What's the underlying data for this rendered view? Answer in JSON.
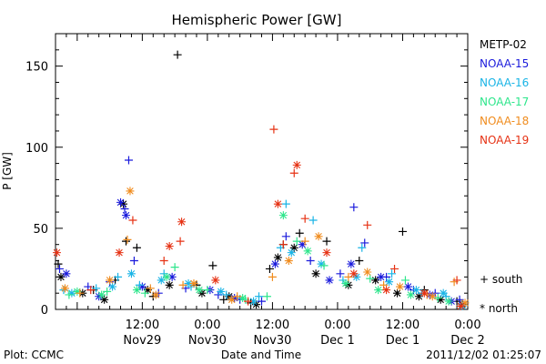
{
  "chart_data": {
    "type": "scatter",
    "title": "Hemispheric Power [GW]",
    "ylabel": "P [GW]",
    "xlabel": "Date and Time",
    "ylim": [
      0,
      170
    ],
    "yticks": [
      0,
      50,
      100,
      150
    ],
    "xlim": [
      "2011-11-28T20:00",
      "2011-12-02T00:00"
    ],
    "xticks": [
      {
        "time": "2011-11-29T12:00",
        "top": "12:00",
        "bottom": "Nov29"
      },
      {
        "time": "2011-11-30T00:00",
        "top": "0:00",
        "bottom": "Nov30"
      },
      {
        "time": "2011-11-30T12:00",
        "top": "12:00",
        "bottom": "Nov30"
      },
      {
        "time": "2011-12-01T00:00",
        "top": "0:00",
        "bottom": "Dec 1"
      },
      {
        "time": "2011-12-01T12:00",
        "top": "12:00",
        "bottom": "Dec 1"
      },
      {
        "time": "2011-12-02T00:00",
        "top": "0:00",
        "bottom": "Dec 2"
      }
    ],
    "legend_placement": "right",
    "series": [
      {
        "name": "METP-02",
        "color": "#000000",
        "south": [
          [
            "2011-11-28T20:30",
            28
          ],
          [
            "2011-11-29T03:00",
            12
          ],
          [
            "2011-11-29T07:00",
            18
          ],
          [
            "2011-11-29T09:00",
            42
          ],
          [
            "2011-11-29T11:00",
            38
          ],
          [
            "2011-11-29T14:00",
            8
          ],
          [
            "2011-11-29T18:30",
            157
          ],
          [
            "2011-11-29T22:00",
            15
          ],
          [
            "2011-11-30T01:00",
            27
          ],
          [
            "2011-11-30T03:00",
            6
          ],
          [
            "2011-11-30T08:00",
            4
          ],
          [
            "2011-11-30T11:30",
            25
          ],
          [
            "2011-11-30T14:00",
            40
          ],
          [
            "2011-11-30T17:00",
            47
          ],
          [
            "2011-11-30T22:00",
            42
          ],
          [
            "2011-12-01T04:00",
            30
          ],
          [
            "2011-12-01T12:00",
            48
          ],
          [
            "2011-12-01T16:00",
            12
          ],
          [
            "2011-12-01T22:00",
            5
          ]
        ],
        "north": [
          [
            "2011-11-28T21:00",
            20
          ],
          [
            "2011-11-29T01:00",
            10
          ],
          [
            "2011-11-29T05:00",
            6
          ],
          [
            "2011-11-29T08:30",
            65
          ],
          [
            "2011-11-29T13:00",
            12
          ],
          [
            "2011-11-29T17:00",
            15
          ],
          [
            "2011-11-29T23:00",
            10
          ],
          [
            "2011-11-30T04:00",
            8
          ],
          [
            "2011-11-30T09:00",
            3
          ],
          [
            "2011-11-30T13:00",
            32
          ],
          [
            "2011-11-30T16:00",
            38
          ],
          [
            "2011-11-30T20:00",
            22
          ],
          [
            "2011-12-01T02:00",
            15
          ],
          [
            "2011-12-01T07:00",
            18
          ],
          [
            "2011-12-01T11:00",
            10
          ],
          [
            "2011-12-01T15:00",
            8
          ],
          [
            "2011-12-01T19:00",
            6
          ],
          [
            "2011-12-01T23:00",
            3
          ]
        ]
      },
      {
        "name": "NOAA-15",
        "color": "#1a1adc",
        "south": [
          [
            "2011-11-28T20:45",
            25
          ],
          [
            "2011-11-29T02:00",
            14
          ],
          [
            "2011-11-29T06:00",
            17
          ],
          [
            "2011-11-29T08:45",
            62
          ],
          [
            "2011-11-29T09:30",
            92
          ],
          [
            "2011-11-29T10:30",
            30
          ],
          [
            "2011-11-29T15:00",
            10
          ],
          [
            "2011-11-29T20:00",
            13
          ],
          [
            "2011-11-30T02:00",
            9
          ],
          [
            "2011-11-30T06:00",
            6
          ],
          [
            "2011-11-30T10:00",
            5
          ],
          [
            "2011-11-30T14:30",
            45
          ],
          [
            "2011-11-30T19:00",
            30
          ],
          [
            "2011-12-01T00:30",
            22
          ],
          [
            "2011-12-01T03:00",
            63
          ],
          [
            "2011-12-01T05:00",
            41
          ],
          [
            "2011-12-01T09:00",
            20
          ],
          [
            "2011-12-01T14:00",
            12
          ],
          [
            "2011-12-01T18:00",
            10
          ],
          [
            "2011-12-01T22:30",
            6
          ]
        ],
        "north": [
          [
            "2011-11-28T22:00",
            22
          ],
          [
            "2011-11-29T04:00",
            8
          ],
          [
            "2011-11-29T08:00",
            66
          ],
          [
            "2011-11-29T09:00",
            58
          ],
          [
            "2011-11-29T12:00",
            14
          ],
          [
            "2011-11-29T17:30",
            20
          ],
          [
            "2011-11-30T00:30",
            12
          ],
          [
            "2011-11-30T05:00",
            7
          ],
          [
            "2011-11-30T12:30",
            28
          ],
          [
            "2011-11-30T17:30",
            40
          ],
          [
            "2011-11-30T22:30",
            18
          ],
          [
            "2011-12-01T02:30",
            28
          ],
          [
            "2011-12-01T08:00",
            20
          ],
          [
            "2011-12-01T13:00",
            14
          ],
          [
            "2011-12-01T17:00",
            9
          ],
          [
            "2011-12-01T21:00",
            5
          ]
        ]
      },
      {
        "name": "NOAA-16",
        "color": "#19b4e6",
        "south": [
          [
            "2011-11-28T21:30",
            12
          ],
          [
            "2011-11-29T03:30",
            13
          ],
          [
            "2011-11-29T07:30",
            20
          ],
          [
            "2011-11-29T11:30",
            15
          ],
          [
            "2011-11-29T16:00",
            22
          ],
          [
            "2011-11-29T21:00",
            14
          ],
          [
            "2011-11-30T03:30",
            9
          ],
          [
            "2011-11-30T09:30",
            8
          ],
          [
            "2011-11-30T13:30",
            38
          ],
          [
            "2011-11-30T14:30",
            65
          ],
          [
            "2011-11-30T19:30",
            55
          ],
          [
            "2011-12-01T01:00",
            18
          ],
          [
            "2011-12-01T04:30",
            38
          ],
          [
            "2011-12-01T10:00",
            22
          ],
          [
            "2011-12-01T15:30",
            10
          ],
          [
            "2011-12-01T20:00",
            8
          ]
        ],
        "north": [
          [
            "2011-11-28T23:00",
            10
          ],
          [
            "2011-11-29T06:30",
            14
          ],
          [
            "2011-11-29T10:00",
            22
          ],
          [
            "2011-11-29T15:30",
            18
          ],
          [
            "2011-11-29T20:30",
            16
          ],
          [
            "2011-11-30T02:30",
            11
          ],
          [
            "2011-11-30T08:30",
            5
          ],
          [
            "2011-11-30T15:30",
            35
          ],
          [
            "2011-11-30T21:00",
            28
          ],
          [
            "2011-12-01T03:30",
            20
          ],
          [
            "2011-12-01T09:30",
            17
          ],
          [
            "2011-12-01T14:30",
            12
          ],
          [
            "2011-12-01T19:30",
            10
          ],
          [
            "2011-12-01T23:00",
            2
          ]
        ]
      },
      {
        "name": "NOAA-17",
        "color": "#2ee68c",
        "south": [
          [
            "2011-11-28T22:30",
            9
          ],
          [
            "2011-11-29T05:30",
            11
          ],
          [
            "2011-11-29T12:30",
            10
          ],
          [
            "2011-11-29T18:00",
            26
          ],
          [
            "2011-11-30T00:00",
            12
          ],
          [
            "2011-11-30T07:00",
            6
          ],
          [
            "2011-11-30T11:00",
            8
          ],
          [
            "2011-11-30T16:30",
            42
          ],
          [
            "2011-11-30T21:30",
            27
          ],
          [
            "2011-12-01T06:00",
            19
          ],
          [
            "2011-12-01T12:30",
            18
          ],
          [
            "2011-12-01T18:30",
            7
          ]
        ],
        "north": [
          [
            "2011-11-29T00:00",
            11
          ],
          [
            "2011-11-29T04:30",
            9
          ],
          [
            "2011-11-29T11:00",
            12
          ],
          [
            "2011-11-29T16:30",
            20
          ],
          [
            "2011-11-29T22:30",
            12
          ],
          [
            "2011-11-30T06:30",
            7
          ],
          [
            "2011-11-30T14:00",
            58
          ],
          [
            "2011-11-30T18:30",
            36
          ],
          [
            "2011-12-01T01:30",
            16
          ],
          [
            "2011-12-01T07:30",
            12
          ],
          [
            "2011-12-01T13:30",
            9
          ],
          [
            "2011-12-01T20:30",
            5
          ]
        ]
      },
      {
        "name": "NOAA-18",
        "color": "#f08c1e",
        "south": [
          [
            "2011-11-29T00:30",
            10
          ],
          [
            "2011-11-29T09:15",
            43
          ],
          [
            "2011-11-29T13:30",
            13
          ],
          [
            "2011-11-29T19:30",
            15
          ],
          [
            "2011-11-30T05:30",
            8
          ],
          [
            "2011-11-30T12:00",
            20
          ],
          [
            "2011-11-30T18:00",
            42
          ],
          [
            "2011-12-01T02:00",
            20
          ],
          [
            "2011-12-01T08:30",
            15
          ],
          [
            "2011-12-01T16:30",
            9
          ],
          [
            "2011-12-01T21:30",
            17
          ]
        ],
        "north": [
          [
            "2011-11-28T21:45",
            13
          ],
          [
            "2011-11-29T06:00",
            18
          ],
          [
            "2011-11-29T09:45",
            73
          ],
          [
            "2011-11-29T14:30",
            9
          ],
          [
            "2011-11-29T21:30",
            16
          ],
          [
            "2011-11-30T04:30",
            6
          ],
          [
            "2011-11-30T15:00",
            30
          ],
          [
            "2011-11-30T20:30",
            45
          ],
          [
            "2011-12-01T05:30",
            23
          ],
          [
            "2011-12-01T11:30",
            14
          ],
          [
            "2011-12-01T17:30",
            8
          ],
          [
            "2011-12-01T23:30",
            4
          ]
        ]
      },
      {
        "name": "NOAA-19",
        "color": "#e63214",
        "south": [
          [
            "2011-11-29T02:30",
            12
          ],
          [
            "2011-11-29T10:15",
            55
          ],
          [
            "2011-11-29T16:00",
            30
          ],
          [
            "2011-11-29T19:00",
            42
          ],
          [
            "2011-11-30T07:30",
            5
          ],
          [
            "2011-11-30T12:15",
            111
          ],
          [
            "2011-11-30T14:00",
            40
          ],
          [
            "2011-11-30T16:00",
            84
          ],
          [
            "2011-11-30T18:00",
            56
          ],
          [
            "2011-12-01T05:30",
            52
          ],
          [
            "2011-12-01T10:30",
            25
          ],
          [
            "2011-12-01T22:00",
            18
          ]
        ],
        "north": [
          [
            "2011-11-28T20:15",
            35
          ],
          [
            "2011-11-29T07:45",
            35
          ],
          [
            "2011-11-29T17:00",
            39
          ],
          [
            "2011-11-29T19:15",
            54
          ],
          [
            "2011-11-30T01:30",
            18
          ],
          [
            "2011-11-30T13:00",
            65
          ],
          [
            "2011-11-30T16:30",
            89
          ],
          [
            "2011-11-30T22:00",
            35
          ],
          [
            "2011-12-01T03:00",
            22
          ],
          [
            "2011-12-01T09:00",
            12
          ],
          [
            "2011-12-01T16:00",
            10
          ],
          [
            "2011-12-01T22:45",
            2
          ]
        ]
      }
    ],
    "markers": {
      "south_symbol": "+",
      "south_label": "south",
      "north_symbol": "*",
      "north_label": "north"
    }
  },
  "footer": {
    "left": "Plot: CCMC",
    "right": "2011/12/02 01:25:07"
  }
}
